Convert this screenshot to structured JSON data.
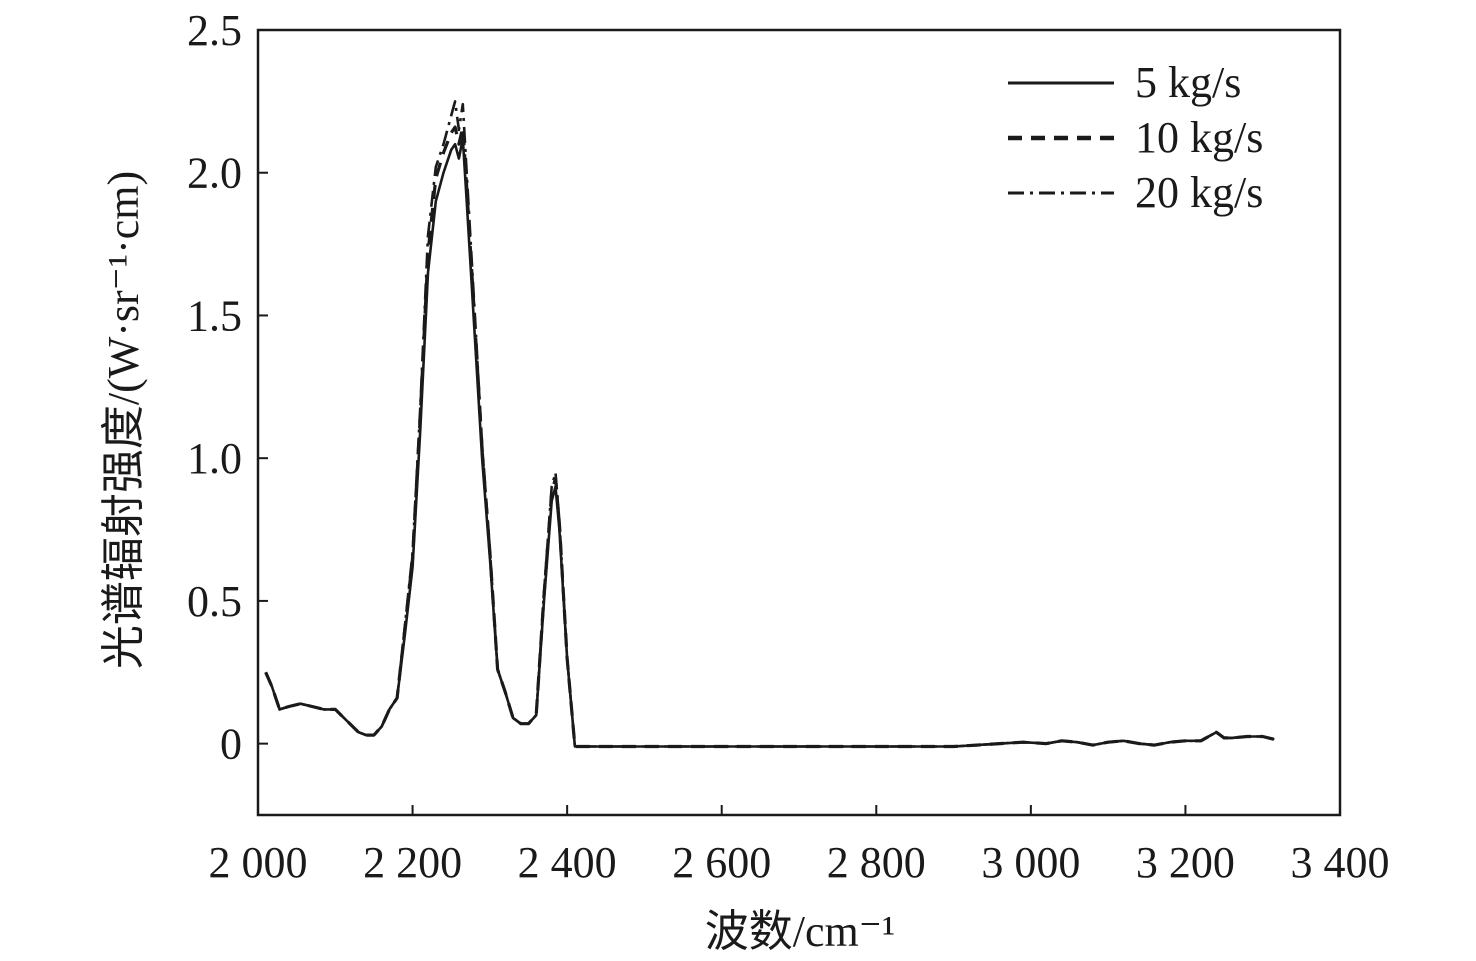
{
  "chart_data": {
    "type": "line",
    "title": "",
    "xlabel": "波数/cm⁻¹",
    "ylabel": "光谱辐射强度/(W·sr⁻¹·cm)",
    "xlim": [
      2000,
      3400
    ],
    "ylim": [
      -0.25,
      2.5
    ],
    "xticks": [
      2000,
      2200,
      2400,
      2600,
      2800,
      3000,
      3200,
      3400
    ],
    "xtick_labels": [
      "2 000",
      "2 200",
      "2 400",
      "2 600",
      "2 800",
      "3 000",
      "3 200",
      "3 400"
    ],
    "yticks": [
      0,
      0.5,
      1.0,
      1.5,
      2.0,
      2.5
    ],
    "ytick_labels": [
      "0",
      "0.5",
      "1.0",
      "1.5",
      "2.0",
      "2.5"
    ],
    "grid": false,
    "legend_position": "top-right",
    "series": [
      {
        "name": "5 kg/s",
        "style": "solid",
        "color": "#1a1a1a",
        "x": [
          2010,
          2018,
          2028,
          2040,
          2055,
          2070,
          2085,
          2100,
          2115,
          2130,
          2140,
          2150,
          2160,
          2170,
          2180,
          2190,
          2200,
          2210,
          2220,
          2230,
          2240,
          2250,
          2255,
          2260,
          2265,
          2270,
          2280,
          2290,
          2300,
          2310,
          2320,
          2330,
          2340,
          2350,
          2360,
          2370,
          2380,
          2385,
          2390,
          2400,
          2410,
          2430,
          2460,
          2500,
          2550,
          2600,
          2650,
          2700,
          2750,
          2800,
          2850,
          2900,
          2930,
          2960,
          2990,
          3020,
          3040,
          3060,
          3080,
          3100,
          3120,
          3140,
          3160,
          3180,
          3200,
          3220,
          3240,
          3250,
          3260,
          3280,
          3300,
          3315
        ],
        "y": [
          0.25,
          0.2,
          0.12,
          0.13,
          0.14,
          0.13,
          0.12,
          0.12,
          0.08,
          0.04,
          0.03,
          0.03,
          0.06,
          0.12,
          0.16,
          0.38,
          0.62,
          1.1,
          1.65,
          1.9,
          2.0,
          2.08,
          2.1,
          2.05,
          2.12,
          1.9,
          1.45,
          1.0,
          0.65,
          0.26,
          0.18,
          0.09,
          0.07,
          0.07,
          0.1,
          0.5,
          0.85,
          0.9,
          0.75,
          0.3,
          -0.01,
          -0.01,
          -0.01,
          -0.01,
          -0.01,
          -0.01,
          -0.01,
          -0.01,
          -0.01,
          -0.01,
          -0.01,
          -0.01,
          -0.005,
          0.0,
          0.005,
          0.0,
          0.01,
          0.005,
          -0.005,
          0.005,
          0.01,
          0.0,
          -0.005,
          0.005,
          0.01,
          0.01,
          0.04,
          0.02,
          0.02,
          0.025,
          0.025,
          0.015
        ]
      },
      {
        "name": "10 kg/s",
        "style": "dashed",
        "color": "#1a1a1a",
        "x": [
          2010,
          2018,
          2028,
          2040,
          2055,
          2070,
          2085,
          2100,
          2115,
          2130,
          2140,
          2150,
          2160,
          2170,
          2180,
          2190,
          2200,
          2210,
          2220,
          2230,
          2240,
          2250,
          2255,
          2260,
          2265,
          2270,
          2280,
          2290,
          2300,
          2310,
          2320,
          2330,
          2340,
          2350,
          2360,
          2370,
          2380,
          2385,
          2390,
          2400,
          2410,
          2430,
          2460,
          2500,
          2550,
          2600,
          2650,
          2700,
          2750,
          2800,
          2850,
          2900,
          2930,
          2960,
          2990,
          3020,
          3040,
          3060,
          3080,
          3100,
          3120,
          3140,
          3160,
          3180,
          3200,
          3220,
          3240,
          3250,
          3260,
          3280,
          3300,
          3315
        ],
        "y": [
          0.25,
          0.2,
          0.12,
          0.13,
          0.14,
          0.13,
          0.12,
          0.12,
          0.08,
          0.04,
          0.03,
          0.03,
          0.06,
          0.12,
          0.16,
          0.4,
          0.65,
          1.15,
          1.72,
          1.98,
          2.07,
          2.14,
          2.16,
          2.1,
          2.16,
          1.95,
          1.5,
          1.03,
          0.67,
          0.26,
          0.18,
          0.09,
          0.07,
          0.07,
          0.1,
          0.52,
          0.88,
          0.93,
          0.77,
          0.3,
          -0.01,
          -0.01,
          -0.01,
          -0.01,
          -0.01,
          -0.01,
          -0.01,
          -0.01,
          -0.01,
          -0.01,
          -0.01,
          -0.01,
          -0.005,
          0.0,
          0.005,
          0.0,
          0.01,
          0.005,
          -0.005,
          0.005,
          0.01,
          0.0,
          -0.005,
          0.005,
          0.01,
          0.01,
          0.04,
          0.02,
          0.02,
          0.025,
          0.025,
          0.015
        ]
      },
      {
        "name": "20 kg/s",
        "style": "dash-dot",
        "color": "#1a1a1a",
        "x": [
          2010,
          2018,
          2028,
          2040,
          2055,
          2070,
          2085,
          2100,
          2115,
          2130,
          2140,
          2150,
          2160,
          2170,
          2180,
          2190,
          2200,
          2210,
          2220,
          2230,
          2240,
          2250,
          2255,
          2260,
          2265,
          2270,
          2280,
          2290,
          2300,
          2310,
          2320,
          2330,
          2340,
          2350,
          2360,
          2370,
          2380,
          2385,
          2390,
          2400,
          2410,
          2430,
          2460,
          2500,
          2550,
          2600,
          2650,
          2700,
          2750,
          2800,
          2850,
          2900,
          2930,
          2960,
          2990,
          3020,
          3040,
          3060,
          3080,
          3100,
          3120,
          3140,
          3160,
          3180,
          3200,
          3220,
          3240,
          3250,
          3260,
          3280,
          3300,
          3315
        ],
        "y": [
          0.25,
          0.2,
          0.12,
          0.13,
          0.14,
          0.13,
          0.12,
          0.12,
          0.08,
          0.04,
          0.03,
          0.03,
          0.06,
          0.12,
          0.16,
          0.41,
          0.67,
          1.18,
          1.78,
          2.02,
          2.1,
          2.2,
          2.25,
          2.15,
          2.24,
          2.0,
          1.53,
          1.05,
          0.68,
          0.26,
          0.18,
          0.09,
          0.07,
          0.07,
          0.1,
          0.53,
          0.9,
          0.95,
          0.78,
          0.3,
          -0.01,
          -0.01,
          -0.01,
          -0.01,
          -0.01,
          -0.01,
          -0.01,
          -0.01,
          -0.01,
          -0.01,
          -0.01,
          -0.01,
          -0.005,
          0.0,
          0.005,
          0.0,
          0.01,
          0.005,
          -0.005,
          0.005,
          0.01,
          0.0,
          -0.005,
          0.005,
          0.01,
          0.01,
          0.04,
          0.02,
          0.02,
          0.025,
          0.025,
          0.015
        ]
      }
    ]
  }
}
